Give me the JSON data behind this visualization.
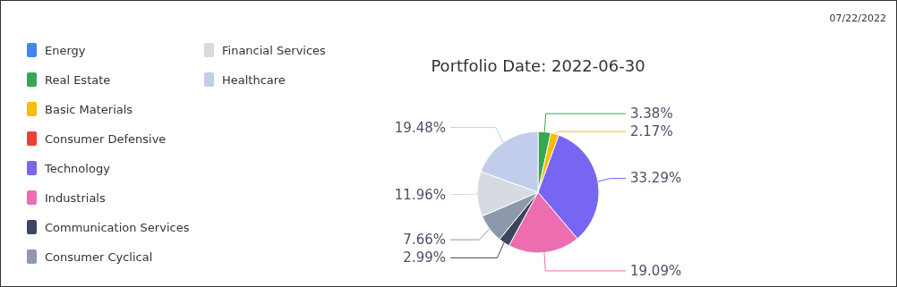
{
  "chart_data": {
    "type": "pie",
    "title": "Portfolio Date: 2022-06-30",
    "annotations": [
      "07/22/2022"
    ],
    "categories": [
      "Energy",
      "Real Estate",
      "Basic Materials",
      "Consumer Defensive",
      "Technology",
      "Industrials",
      "Communication Services",
      "Consumer Cyclical",
      "Financial Services",
      "Healthcare"
    ],
    "values": [
      0,
      3.38,
      2.17,
      0,
      33.29,
      19.09,
      2.99,
      7.66,
      11.96,
      19.48
    ],
    "value_labels": [
      null,
      "3.38%",
      "2.17%",
      null,
      "33.29%",
      "19.09%",
      "2.99%",
      "7.66%",
      "11.96%",
      "19.48%"
    ],
    "colors": [
      "#4285f4",
      "#34a853",
      "#fbbc05",
      "#ea4335",
      "#7666f1",
      "#ec6db0",
      "#3c4560",
      "#8e98ad",
      "#d6dbe1",
      "#c1cdea"
    ],
    "legend": "left"
  }
}
